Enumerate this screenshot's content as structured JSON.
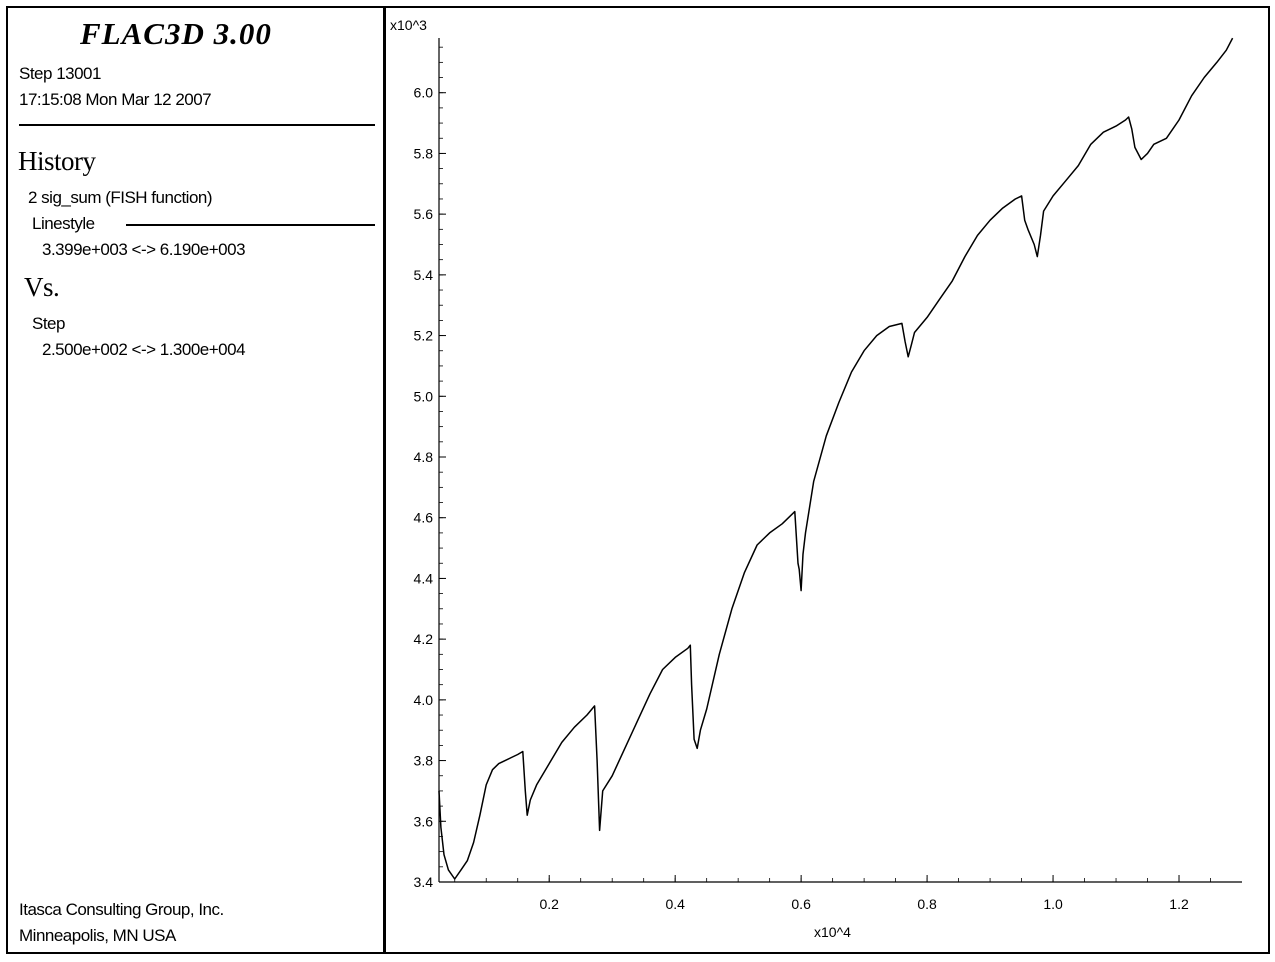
{
  "header": {
    "title": "FLAC3D 3.00",
    "step": "Step 13001",
    "timestamp": "17:15:08 Mon Mar 12 2007"
  },
  "legend": {
    "history_heading": "History",
    "history_item": "2 sig_sum (FISH function)",
    "linestyle_label": "Linestyle",
    "history_range": "3.399e+003 <->  6.190e+003",
    "vs_heading": "Vs.",
    "vs_item": "Step",
    "vs_range": "2.500e+002 <->  1.300e+004"
  },
  "footer": {
    "company": "Itasca Consulting Group, Inc.",
    "location": "Minneapolis, MN  USA"
  },
  "chart_data": {
    "type": "line",
    "title": "",
    "xlabel": "",
    "ylabel": "",
    "x_multiplier": "x10^4",
    "y_multiplier": "x10^3",
    "xlim": [
      0.025,
      1.3
    ],
    "ylim": [
      3.4,
      6.2
    ],
    "x_ticks": [
      "0.2",
      "0.4",
      "0.6",
      "0.8",
      "1.0",
      "1.2"
    ],
    "y_ticks": [
      "3.4",
      "3.6",
      "3.8",
      "4.0",
      "4.2",
      "4.4",
      "4.6",
      "4.8",
      "5.0",
      "5.2",
      "5.4",
      "5.6",
      "5.8",
      "6.0"
    ],
    "grid": false,
    "series": [
      {
        "x": [
          0.025,
          0.028,
          0.033,
          0.04,
          0.05,
          0.06,
          0.07,
          0.08,
          0.09,
          0.1,
          0.11,
          0.12,
          0.13,
          0.14,
          0.15,
          0.158,
          0.162,
          0.165,
          0.17,
          0.18,
          0.2,
          0.22,
          0.24,
          0.26,
          0.272,
          0.276,
          0.28,
          0.285,
          0.3,
          0.32,
          0.34,
          0.36,
          0.38,
          0.4,
          0.42,
          0.424,
          0.426,
          0.43,
          0.435,
          0.44,
          0.45,
          0.47,
          0.49,
          0.51,
          0.53,
          0.55,
          0.57,
          0.59,
          0.595,
          0.597,
          0.6,
          0.603,
          0.607,
          0.62,
          0.64,
          0.66,
          0.68,
          0.7,
          0.72,
          0.74,
          0.76,
          0.765,
          0.77,
          0.775,
          0.78,
          0.8,
          0.82,
          0.84,
          0.86,
          0.88,
          0.9,
          0.92,
          0.94,
          0.95,
          0.955,
          0.96,
          0.97,
          0.975,
          0.98,
          0.985,
          1.0,
          1.02,
          1.04,
          1.06,
          1.08,
          1.1,
          1.115,
          1.12,
          1.125,
          1.13,
          1.14,
          1.15,
          1.16,
          1.18,
          1.2,
          1.22,
          1.24,
          1.26,
          1.275,
          1.285
        ],
        "values": [
          3.7,
          3.58,
          3.49,
          3.44,
          3.41,
          3.44,
          3.47,
          3.53,
          3.62,
          3.72,
          3.77,
          3.79,
          3.8,
          3.81,
          3.82,
          3.83,
          3.7,
          3.62,
          3.67,
          3.72,
          3.79,
          3.86,
          3.91,
          3.95,
          3.98,
          3.8,
          3.57,
          3.7,
          3.75,
          3.84,
          3.93,
          4.02,
          4.1,
          4.14,
          4.17,
          4.18,
          4.05,
          3.87,
          3.84,
          3.9,
          3.97,
          4.15,
          4.3,
          4.42,
          4.51,
          4.55,
          4.58,
          4.62,
          4.45,
          4.43,
          4.36,
          4.48,
          4.55,
          4.72,
          4.87,
          4.98,
          5.08,
          5.15,
          5.2,
          5.23,
          5.24,
          5.18,
          5.13,
          5.17,
          5.21,
          5.26,
          5.32,
          5.38,
          5.46,
          5.53,
          5.58,
          5.62,
          5.65,
          5.66,
          5.58,
          5.55,
          5.5,
          5.46,
          5.53,
          5.61,
          5.66,
          5.71,
          5.76,
          5.83,
          5.87,
          5.89,
          5.91,
          5.92,
          5.88,
          5.82,
          5.78,
          5.8,
          5.83,
          5.85,
          5.91,
          5.99,
          6.05,
          6.1,
          6.14,
          6.18
        ]
      }
    ]
  }
}
